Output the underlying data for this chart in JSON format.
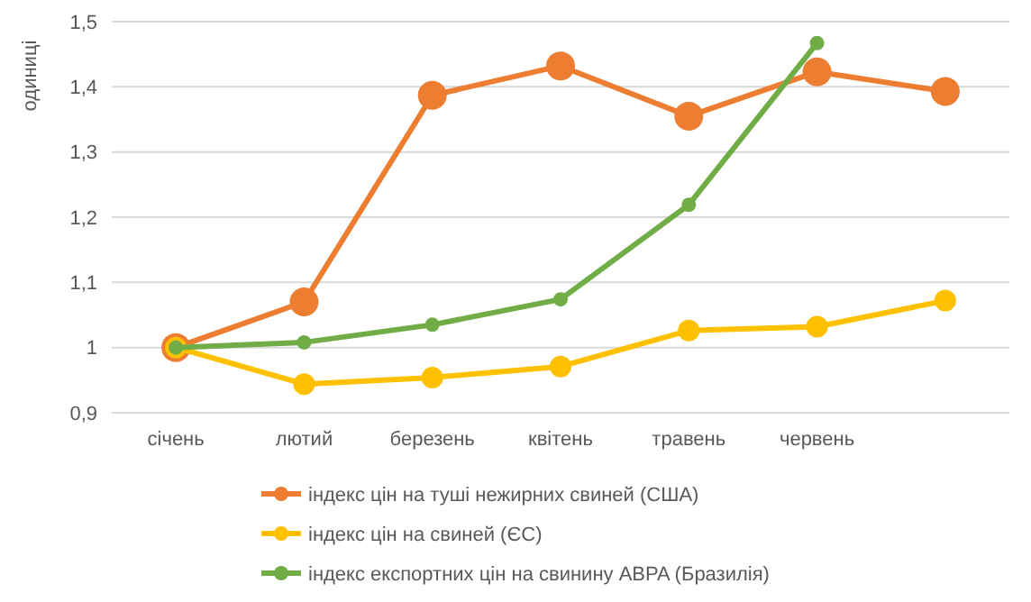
{
  "chart_data": {
    "type": "line",
    "ylabel": "одиниці",
    "categories": [
      "січень",
      "лютий",
      "березень",
      "квітень",
      "травень",
      "червень",
      null
    ],
    "series": [
      {
        "name": "індекс цін на туші нежирних свиней (США)",
        "color": "#ed7d31",
        "values": [
          1.0,
          1.07,
          1.387,
          1.432,
          1.355,
          1.423,
          1.393
        ]
      },
      {
        "name": "індекс цін на свиней (ЄС)",
        "color": "#ffc000",
        "values": [
          1.0,
          0.944,
          0.954,
          0.971,
          1.026,
          1.032,
          1.072
        ]
      },
      {
        "name": "індекс експортних цін на свинину ABPA (Бразилія)",
        "color": "#70ad47",
        "values": [
          1.0,
          1.008,
          1.035,
          1.074,
          1.219,
          1.467,
          null
        ]
      }
    ],
    "ylim": [
      0.9,
      1.5
    ],
    "yticks": [
      {
        "value": 0.9,
        "label": "0,9"
      },
      1,
      {
        "value": 1.1,
        "label": "1,1"
      },
      {
        "value": 1.2,
        "label": "1,2"
      },
      {
        "value": 1.3,
        "label": "1,3"
      },
      {
        "value": 1.4,
        "label": "1,4"
      },
      {
        "value": 1.5,
        "label": "1,5"
      }
    ],
    "grid": "y",
    "legend": "bottom",
    "marker": "circle",
    "line_style": "solid"
  }
}
